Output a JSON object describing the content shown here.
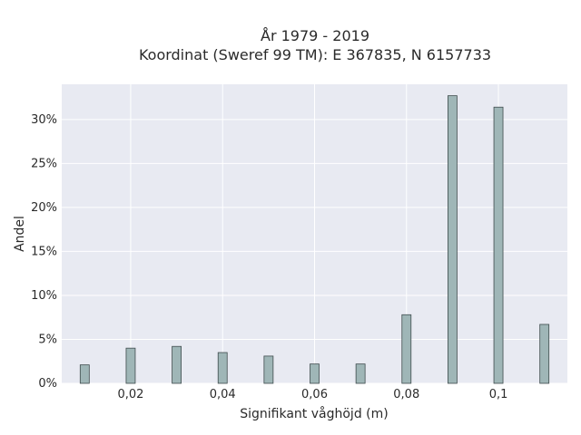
{
  "chart_data": {
    "type": "bar",
    "title_line1": "År 1979 - 2019",
    "title_line2": "Koordinat (Sweref 99 TM): E 367835, N 6157733",
    "xlabel": "Signifikant våghöjd (m)",
    "ylabel": "Andel",
    "x": [
      0.01,
      0.02,
      0.03,
      0.04,
      0.05,
      0.06,
      0.07,
      0.08,
      0.09,
      0.1,
      0.11
    ],
    "values": [
      2.1,
      4.0,
      4.2,
      3.5,
      3.1,
      2.2,
      2.2,
      7.8,
      32.7,
      31.4,
      6.7
    ],
    "xlim": [
      0.005,
      0.115
    ],
    "ylim": [
      0,
      34
    ],
    "x_ticks": [
      0.02,
      0.04,
      0.06,
      0.08,
      0.1
    ],
    "x_tick_labels": [
      "0,02",
      "0,04",
      "0,06",
      "0,08",
      "0,1"
    ],
    "y_ticks": [
      0,
      5,
      10,
      15,
      20,
      25,
      30
    ],
    "y_tick_labels": [
      "0%",
      "5%",
      "10%",
      "15%",
      "20%",
      "25%",
      "30%"
    ],
    "grid": true,
    "colors": {
      "bar_fill": "#9fb6b7",
      "bar_stroke": "#3f4c4d",
      "plot_bg": "#e8eaf2",
      "grid": "#ffffff"
    }
  }
}
